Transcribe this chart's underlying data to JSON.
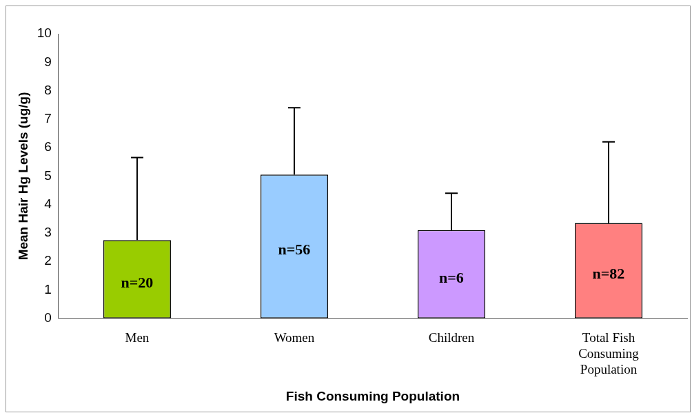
{
  "chart_data": {
    "type": "bar",
    "xlabel": "Fish Consuming Population",
    "ylabel": "Mean Hair Hg Levels (ug/g)",
    "categories": [
      "Men",
      "Women",
      "Children",
      "Total Fish Consuming Population"
    ],
    "values": [
      2.75,
      5.05,
      3.1,
      3.35
    ],
    "colors": [
      "#99cc00",
      "#99ccff",
      "#cc99ff",
      "#ff8080"
    ],
    "errors": [
      [
        2.75,
        5.65
      ],
      [
        5.05,
        7.4
      ],
      [
        3.1,
        4.4
      ],
      [
        3.35,
        6.2
      ]
    ],
    "ylim": [
      0,
      10
    ],
    "yticks": [
      0,
      1,
      2,
      3,
      4,
      5,
      6,
      7,
      8,
      9,
      10
    ],
    "annotations": [
      "n=20",
      "n=56",
      "n=6",
      "n=82"
    ],
    "grid": false,
    "legend": false
  }
}
